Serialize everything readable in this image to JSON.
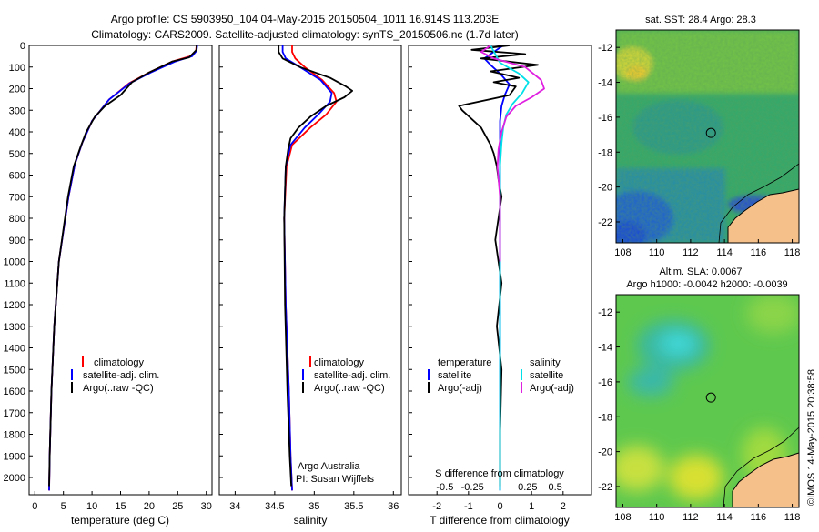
{
  "title": {
    "line1": "Argo profile: CS 5903950_104 04-May-2015 20150504_1011 16.914S 113.203E",
    "line2": "Climatology: CARS2009. Satellite-adjusted climatology: synTS_20150506.nc (1.7d later)"
  },
  "colors": {
    "clim": "#ff0000",
    "sat": "#0000ff",
    "argo": "#000000",
    "sal_sat": "#00e0e8",
    "sal_argo": "#e020e0",
    "land": "#f5c08a"
  },
  "depth_axis": {
    "ylim": [
      0,
      2080
    ],
    "ticks": [
      0,
      100,
      200,
      300,
      400,
      500,
      600,
      700,
      800,
      900,
      1000,
      1100,
      1200,
      1300,
      1400,
      1500,
      1600,
      1700,
      1800,
      1900,
      2000
    ],
    "tick_labels": [
      "0",
      "100",
      "200",
      "300",
      "400",
      "500",
      "600",
      "700",
      "800",
      "900",
      "1000",
      "1100",
      "1200",
      "1300",
      "1400",
      "1500",
      "1600",
      "1700",
      "1800",
      "1900",
      "2000"
    ]
  },
  "chart_data": [
    {
      "type": "line",
      "name": "temperature-profile",
      "xlabel": "temperature (deg C)",
      "xlim": [
        -1,
        31
      ],
      "xticks": [
        0,
        5,
        10,
        15,
        20,
        25,
        30
      ],
      "xtick_labels": [
        "0",
        "5",
        "10",
        "15",
        "20",
        "25",
        "30"
      ],
      "legend": [
        "climatology",
        "satellite-adj. clim.",
        "Argo(..raw -QC)"
      ],
      "series": [
        {
          "name": "climatology",
          "color": "#ff0000",
          "x": [
            28.3,
            28.2,
            27.2,
            24,
            20,
            16.5,
            13,
            10,
            8.3,
            7,
            5.9,
            4.2,
            3.4,
            2.9,
            2.6,
            2.5
          ],
          "y": [
            0,
            25,
            50,
            75,
            125,
            175,
            250,
            350,
            450,
            550,
            700,
            1000,
            1300,
            1600,
            1900,
            2060
          ]
        },
        {
          "name": "satellite-adj. clim.",
          "color": "#0000ff",
          "x": [
            28.4,
            28.3,
            27.5,
            24.5,
            20.3,
            16.6,
            13,
            10,
            8.3,
            7,
            5.9,
            4.2,
            3.4,
            2.9,
            2.6,
            2.5
          ],
          "y": [
            0,
            25,
            50,
            75,
            125,
            175,
            250,
            350,
            450,
            550,
            700,
            1000,
            1300,
            1600,
            1900,
            2060
          ]
        },
        {
          "name": "Argo(..raw -QC)",
          "color": "#000000",
          "x": [
            28.3,
            28.3,
            27,
            24,
            20,
            17,
            15,
            12.3,
            10.5,
            9,
            8,
            6.8,
            5.8,
            4.2,
            3.4,
            2.9,
            2.6,
            2.5
          ],
          "y": [
            0,
            20,
            55,
            75,
            125,
            170,
            230,
            280,
            330,
            400,
            470,
            560,
            700,
            1000,
            1300,
            1600,
            1900,
            2040
          ]
        }
      ]
    },
    {
      "type": "line",
      "name": "salinity-profile",
      "xlabel": "salinity",
      "xlim": [
        33.8,
        36.1
      ],
      "xticks": [
        34,
        34.5,
        35,
        35.5,
        36
      ],
      "xtick_labels": [
        "34",
        "34.5",
        "35",
        "35.5",
        "36"
      ],
      "legend": [
        "climatology",
        "satellite-adj. clim.",
        "Argo(..raw -QC)"
      ],
      "annotation": [
        "Argo Australia",
        "PI: Susan Wijffels"
      ],
      "series": [
        {
          "name": "climatology",
          "color": "#ff0000",
          "x": [
            34.72,
            34.72,
            34.76,
            34.88,
            35.1,
            35.25,
            35.28,
            35.15,
            34.95,
            34.72,
            34.65,
            34.62,
            34.64,
            34.68,
            34.7,
            34.72
          ],
          "y": [
            0,
            30,
            60,
            100,
            160,
            220,
            260,
            320,
            380,
            460,
            560,
            800,
            1200,
            1600,
            1900,
            2060
          ]
        },
        {
          "name": "satellite-adj. clim.",
          "color": "#0000ff",
          "x": [
            34.6,
            34.6,
            34.64,
            34.82,
            35.08,
            35.22,
            35.2,
            35.05,
            34.88,
            34.7,
            34.64,
            34.62,
            34.64,
            34.68,
            34.7,
            34.72
          ],
          "y": [
            0,
            30,
            60,
            100,
            160,
            220,
            260,
            320,
            380,
            460,
            560,
            800,
            1200,
            1600,
            1900,
            2060
          ]
        },
        {
          "name": "Argo(..raw -QC)",
          "color": "#000000",
          "x": [
            34.55,
            34.55,
            34.6,
            34.82,
            35.2,
            35.4,
            35.48,
            35.38,
            35.15,
            34.95,
            34.8,
            34.7,
            34.67,
            34.64,
            34.62,
            34.63,
            34.66,
            34.69,
            34.71
          ],
          "y": [
            0,
            30,
            60,
            100,
            150,
            190,
            210,
            240,
            280,
            330,
            380,
            430,
            480,
            560,
            800,
            1200,
            1600,
            1900,
            2040
          ]
        }
      ]
    },
    {
      "type": "line",
      "name": "difference-profile",
      "xlabel": "T difference from climatology",
      "xlabel2": "S difference from climatology",
      "xlim": [
        -2.9,
        2.9
      ],
      "xticks": [
        -2,
        -1,
        0,
        1,
        2
      ],
      "xtick_labels": [
        "-2",
        "-1",
        "0",
        "1",
        "2"
      ],
      "xticks2": [
        -1.75,
        -0.875,
        0.875,
        1.75
      ],
      "xtick_labels2": [
        "-0.5",
        "-0.25",
        "0.25",
        "0.5"
      ],
      "legend_temperature": [
        "temperature",
        "satellite",
        "Argo(-adj)"
      ],
      "legend_salinity": [
        "salinity",
        "satellite",
        "Argo(-adj)"
      ],
      "series": [
        {
          "name": "temperature satellite",
          "color": "#0000ff",
          "x": [
            0.1,
            -0.2,
            -0.5,
            -0.3,
            0,
            0.3,
            0.15,
            0.05,
            0,
            0,
            0,
            0
          ],
          "y": [
            0,
            30,
            60,
            90,
            130,
            180,
            230,
            280,
            350,
            450,
            700,
            2060
          ]
        },
        {
          "name": "temperature Argo(-adj)",
          "color": "#000000",
          "x": [
            0.3,
            -0.9,
            0.8,
            -0.6,
            1.2,
            -0.3,
            0.6,
            -0.2,
            0.5,
            0.3,
            -1.3,
            -1.2,
            -0.9,
            -0.6,
            -0.45,
            -0.3,
            -0.2,
            -0.1,
            -0.05,
            0.05,
            -0.15,
            0.05,
            -0.1,
            0.05,
            0,
            0
          ],
          "y": [
            0,
            20,
            40,
            60,
            90,
            120,
            150,
            170,
            190,
            230,
            280,
            300,
            340,
            380,
            420,
            460,
            500,
            560,
            620,
            700,
            900,
            1100,
            1300,
            1500,
            1800,
            2040
          ]
        },
        {
          "name": "salinity satellite",
          "color": "#00e0e8",
          "x": [
            -0.3,
            -0.15,
            0,
            0.6,
            0.9,
            0.7,
            0.4,
            0.2,
            0.1,
            0.05,
            0,
            0,
            0
          ],
          "y": [
            0,
            40,
            80,
            130,
            170,
            220,
            270,
            320,
            380,
            450,
            560,
            900,
            2060
          ]
        },
        {
          "name": "salinity Argo(-adj)",
          "color": "#e020e0",
          "x": [
            -0.3,
            -0.6,
            -0.2,
            0.8,
            1.3,
            1.4,
            1,
            0.5,
            0.2,
            0.05,
            -0.05,
            -0.08,
            0,
            0
          ],
          "y": [
            0,
            30,
            60,
            100,
            160,
            200,
            240,
            280,
            330,
            400,
            480,
            560,
            700,
            1000
          ]
        }
      ]
    },
    {
      "type": "heatmap",
      "name": "sst-map",
      "title": "sat. SST: 28.4 Argo: 28.3",
      "xlim": [
        107.6,
        118.4
      ],
      "ylim": [
        -23.2,
        -11
      ],
      "xticks": [
        108,
        110,
        112,
        114,
        116,
        118
      ],
      "xtick_labels": [
        "108",
        "110",
        "112",
        "114",
        "116",
        "118"
      ],
      "yticks": [
        -12,
        -14,
        -16,
        -18,
        -20,
        -22
      ],
      "ytick_labels": [
        "-12",
        "-14",
        "-16",
        "-18",
        "-20",
        "-22"
      ],
      "float_position": [
        113.2,
        -16.9
      ]
    },
    {
      "type": "heatmap",
      "name": "sla-map",
      "title_line1": "Altim. SLA: 0.0067",
      "title_line2": "Argo h1000: -0.0042 h2000: -0.0039",
      "xlim": [
        107.6,
        118.4
      ],
      "ylim": [
        -23.2,
        -11
      ],
      "xticks": [
        108,
        110,
        112,
        114,
        116,
        118
      ],
      "xtick_labels": [
        "108",
        "110",
        "112",
        "114",
        "116",
        "118"
      ],
      "yticks": [
        -12,
        -14,
        -16,
        -18,
        -20,
        -22
      ],
      "ytick_labels": [
        "-12",
        "-14",
        "-16",
        "-18",
        "-20",
        "-22"
      ],
      "float_position": [
        113.2,
        -16.9
      ]
    }
  ],
  "watermark": "©IMOS 14-May-2015 20:38:58"
}
